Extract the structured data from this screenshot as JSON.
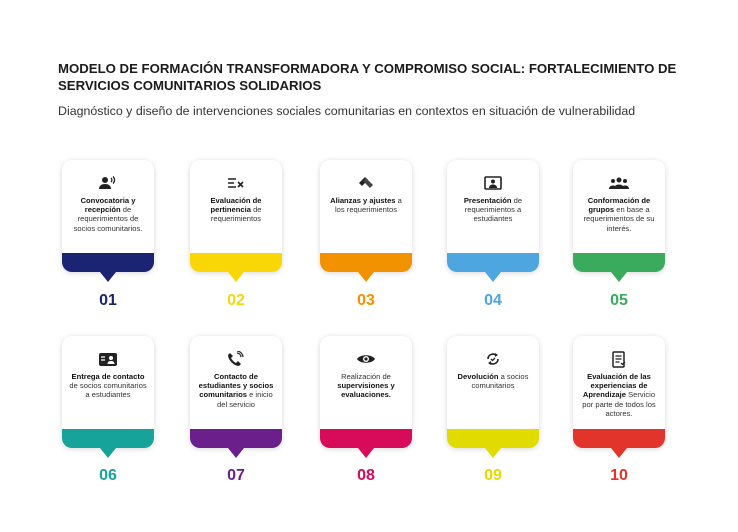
{
  "title": "MODELO DE FORMACIÓN TRANSFORMADORA Y COMPROMISO SOCIAL: FORTALECIMIENTO DE SERVICIOS COMUNITARIOS SOLIDARIOS",
  "subtitle": "Diagnóstico y diseño de intervenciones sociales comunitarias en contextos en situación de vulnerabilidad",
  "steps": [
    {
      "num": "01",
      "color": "#1a2472",
      "icon": "person-speaking-icon",
      "bold": "Convocatoria y recepción",
      "rest": " de requerimientos de socios comunitarios."
    },
    {
      "num": "02",
      "color": "#f9d605",
      "icon": "checklist-icon",
      "bold": "Evaluación de pertinencia",
      "rest": " de requerimientos"
    },
    {
      "num": "03",
      "color": "#f39200",
      "icon": "handshake-icon",
      "bold": "Alianzas y ajustes",
      "rest": " a los requerimientos"
    },
    {
      "num": "04",
      "color": "#4da6e0",
      "icon": "presentation-icon",
      "bold": "Presentación",
      "rest": " de requerimientos a estudiantes"
    },
    {
      "num": "05",
      "color": "#3aaa5c",
      "icon": "group-icon",
      "bold": "Conformación de grupos",
      "rest": " en base a requerimientos de su interés."
    },
    {
      "num": "06",
      "color": "#16a39a",
      "icon": "contact-card-icon",
      "bold": "Entrega de contacto",
      "rest": " de socios comunitarios a estudiantes"
    },
    {
      "num": "07",
      "color": "#6a1f8a",
      "icon": "phone-contact-icon",
      "bold": "Contacto de estudiantes y socios comunitarios",
      "rest": " e inicio del servicio"
    },
    {
      "num": "08",
      "color": "#d70b5a",
      "icon": "eye-icon",
      "pre": "Realización de ",
      "bold": "supervisiones y evaluaciones.",
      "rest": ""
    },
    {
      "num": "09",
      "color": "#e2db00",
      "icon": "refresh-icon",
      "bold": "Devolución",
      "rest": " a socios comunitarios"
    },
    {
      "num": "10",
      "color": "#e3342c",
      "icon": "report-icon",
      "bold": "Evaluación de las experiencias de Aprendizaje",
      "rest": " Servicio por parte de todos los actores."
    }
  ]
}
